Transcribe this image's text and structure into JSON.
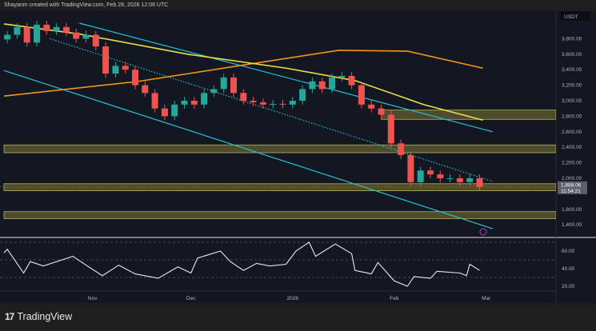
{
  "header": {
    "attribution": "Shayanm created with TradingView.com, Feb 28, 2026 12:06 UTC"
  },
  "footer": {
    "brand": "TradingView",
    "brand_mark": "17"
  },
  "chart_data": {
    "type": "candlestick",
    "currency_label": "USDT",
    "last_price": "1,888.06",
    "countdown": "11:54:21",
    "price_ticks": [
      "3,800.00",
      "3,600.00",
      "3,400.00",
      "3,200.00",
      "3,000.00",
      "2,800.00",
      "2,600.00",
      "2,400.00",
      "2,200.00",
      "2,000.00",
      "1,600.00",
      "1,400.00"
    ],
    "price_tick_values": [
      3800,
      3600,
      3400,
      3200,
      3000,
      2800,
      2600,
      2400,
      2200,
      2000,
      1600,
      1400
    ],
    "x_ticks": [
      {
        "label": "Nov",
        "date": "2025-11-01"
      },
      {
        "label": "Dec",
        "date": "2025-12-01"
      },
      {
        "label": "2026",
        "date": "2026-01-01"
      },
      {
        "label": "Feb",
        "date": "2026-02-01"
      },
      {
        "label": "Mar",
        "date": "2026-03-01"
      }
    ],
    "candles": {
      "dates": [
        "2025-10-06",
        "2025-10-09",
        "2025-10-12",
        "2025-10-15",
        "2025-10-18",
        "2025-10-21",
        "2025-10-24",
        "2025-10-27",
        "2025-10-30",
        "2025-11-02",
        "2025-11-05",
        "2025-11-08",
        "2025-11-11",
        "2025-11-14",
        "2025-11-17",
        "2025-11-20",
        "2025-11-23",
        "2025-11-26",
        "2025-11-29",
        "2025-12-02",
        "2025-12-05",
        "2025-12-08",
        "2025-12-11",
        "2025-12-14",
        "2025-12-17",
        "2025-12-20",
        "2025-12-23",
        "2025-12-26",
        "2025-12-29",
        "2026-01-01",
        "2026-01-04",
        "2026-01-07",
        "2026-01-10",
        "2026-01-13",
        "2026-01-16",
        "2026-01-19",
        "2026-01-22",
        "2026-01-25",
        "2026-01-28",
        "2026-01-31",
        "2026-02-03",
        "2026-02-06",
        "2026-02-09",
        "2026-02-12",
        "2026-02-15",
        "2026-02-18",
        "2026-02-21",
        "2026-02-24",
        "2026-02-27"
      ],
      "close": [
        3850,
        3950,
        3750,
        3980,
        3900,
        3950,
        3880,
        3800,
        3850,
        3700,
        3350,
        3450,
        3400,
        3200,
        3100,
        2900,
        2800,
        2950,
        3000,
        2950,
        3100,
        3150,
        3300,
        3100,
        3000,
        2980,
        2950,
        2960,
        2950,
        3000,
        3150,
        3250,
        3150,
        3300,
        3320,
        3200,
        2950,
        2900,
        2820,
        2450,
        2300,
        1950,
        2100,
        2050,
        2000,
        2000,
        1950,
        2000,
        1888
      ]
    },
    "moving_averages": [
      {
        "color": "#f7931a",
        "points": [
          [
            "2025-10-05",
            3060
          ],
          [
            "2025-11-15",
            3250
          ],
          [
            "2025-12-20",
            3480
          ],
          [
            "2026-01-15",
            3650
          ],
          [
            "2026-02-05",
            3640
          ],
          [
            "2026-02-28",
            3420
          ]
        ]
      },
      {
        "color": "#e8e04a",
        "points": [
          [
            "2025-10-05",
            3990
          ],
          [
            "2025-10-28",
            3860
          ],
          [
            "2025-11-30",
            3600
          ],
          [
            "2025-12-30",
            3420
          ],
          [
            "2026-01-20",
            3260
          ],
          [
            "2026-02-10",
            2950
          ],
          [
            "2026-02-28",
            2750
          ]
        ]
      }
    ],
    "trend_lines": [
      {
        "style": "solid",
        "color": "#27c1d6",
        "from": [
          "2025-10-28",
          4000
        ],
        "to": [
          "2026-03-03",
          2600
        ]
      },
      {
        "style": "solid",
        "color": "#27c1d6",
        "from": [
          "2025-10-05",
          3390
        ],
        "to": [
          "2026-03-03",
          1350
        ]
      },
      {
        "style": "dotted",
        "color": "#27c1d6",
        "from": [
          "2025-10-19",
          3800
        ],
        "to": [
          "2026-03-03",
          1960
        ]
      }
    ],
    "zones": [
      {
        "from_date": "2026-01-28",
        "low": 2760,
        "high": 2880
      },
      {
        "from_date": "2025-10-05",
        "low": 2330,
        "high": 2430
      },
      {
        "from_date": "2025-10-05",
        "low": 1840,
        "high": 1930
      },
      {
        "from_date": "2025-10-05",
        "low": 1480,
        "high": 1570
      }
    ],
    "colors": {
      "up": "#26a69a",
      "down": "#ef5350",
      "background": "#131722",
      "zone": "#4d4d2e",
      "zone_border": "#b8b060"
    },
    "rsi": {
      "ticks": [
        "60.00",
        "40.00",
        "20.00"
      ],
      "tick_values": [
        60,
        40,
        20
      ],
      "bands": [
        70,
        50,
        30
      ],
      "points": [
        [
          "2025-10-05",
          58
        ],
        [
          "2025-10-06",
          62
        ],
        [
          "2025-10-11",
          35
        ],
        [
          "2025-10-13",
          48
        ],
        [
          "2025-10-17",
          43
        ],
        [
          "2025-10-26",
          54
        ],
        [
          "2025-10-30",
          44
        ],
        [
          "2025-11-04",
          32
        ],
        [
          "2025-11-09",
          44
        ],
        [
          "2025-11-14",
          34
        ],
        [
          "2025-11-21",
          29
        ],
        [
          "2025-11-27",
          42
        ],
        [
          "2025-12-01",
          35
        ],
        [
          "2025-12-03",
          52
        ],
        [
          "2025-12-10",
          60
        ],
        [
          "2025-12-13",
          48
        ],
        [
          "2025-12-17",
          38
        ],
        [
          "2025-12-21",
          46
        ],
        [
          "2025-12-25",
          43
        ],
        [
          "2025-12-30",
          45
        ],
        [
          "2026-01-02",
          60
        ],
        [
          "2026-01-06",
          70
        ],
        [
          "2026-01-08",
          54
        ],
        [
          "2026-01-14",
          68
        ],
        [
          "2026-01-19",
          57
        ],
        [
          "2026-01-20",
          38
        ],
        [
          "2026-01-25",
          34
        ],
        [
          "2026-01-27",
          47
        ],
        [
          "2026-02-01",
          26
        ],
        [
          "2026-02-05",
          20
        ],
        [
          "2026-02-07",
          31
        ],
        [
          "2026-02-12",
          29
        ],
        [
          "2026-02-14",
          37
        ],
        [
          "2026-02-21",
          35
        ],
        [
          "2026-02-23",
          32
        ],
        [
          "2026-02-24",
          45
        ],
        [
          "2026-02-27",
          38
        ]
      ]
    }
  }
}
